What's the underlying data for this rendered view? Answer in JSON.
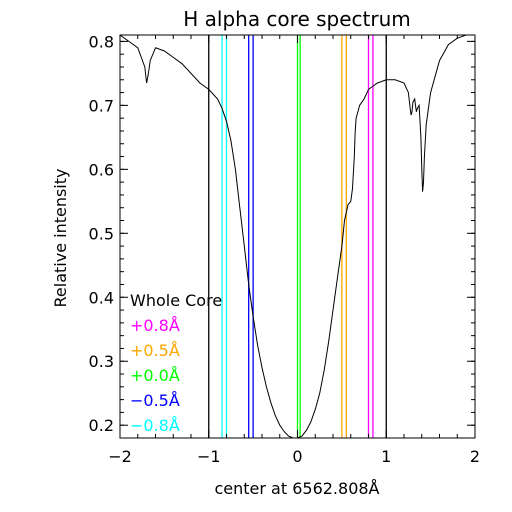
{
  "chart_data": {
    "type": "line",
    "title": "H alpha core spectrum",
    "xlabel": "center at 6562.808Å",
    "ylabel": "Relative intensity",
    "xlim": [
      -2,
      2
    ],
    "ylim": [
      0.18,
      0.81
    ],
    "x_ticks": [
      {
        "value": -2,
        "label": "−2"
      },
      {
        "value": -1,
        "label": "−1"
      },
      {
        "value": 0,
        "label": "0"
      },
      {
        "value": 1,
        "label": "1"
      },
      {
        "value": 2,
        "label": "2"
      }
    ],
    "y_ticks": [
      {
        "value": 0.2,
        "label": "0.2"
      },
      {
        "value": 0.3,
        "label": "0.3"
      },
      {
        "value": 0.4,
        "label": "0.4"
      },
      {
        "value": 0.5,
        "label": "0.5"
      },
      {
        "value": 0.6,
        "label": "0.6"
      },
      {
        "value": 0.7,
        "label": "0.7"
      },
      {
        "value": 0.8,
        "label": "0.8"
      }
    ],
    "series": [
      {
        "color": "#000000",
        "x": [
          -2.0,
          -1.9,
          -1.8,
          -1.72,
          -1.7,
          -1.68,
          -1.66,
          -1.6,
          -1.5,
          -1.4,
          -1.3,
          -1.2,
          -1.1,
          -1.0,
          -0.9,
          -0.85,
          -0.8,
          -0.75,
          -0.7,
          -0.65,
          -0.6,
          -0.55,
          -0.5,
          -0.45,
          -0.4,
          -0.35,
          -0.3,
          -0.25,
          -0.2,
          -0.15,
          -0.1,
          -0.05,
          0.0,
          0.05,
          0.1,
          0.15,
          0.2,
          0.25,
          0.3,
          0.35,
          0.4,
          0.45,
          0.5,
          0.53,
          0.57,
          0.6,
          0.62,
          0.64,
          0.65,
          0.66,
          0.68,
          0.7,
          0.75,
          0.8,
          0.9,
          1.0,
          1.1,
          1.2,
          1.25,
          1.27,
          1.28,
          1.29,
          1.3,
          1.32,
          1.33,
          1.34,
          1.35,
          1.37,
          1.39,
          1.4,
          1.41,
          1.42,
          1.43,
          1.45,
          1.5,
          1.6,
          1.7,
          1.8,
          1.9,
          2.0
        ],
        "y": [
          0.81,
          0.8,
          0.79,
          0.76,
          0.735,
          0.75,
          0.77,
          0.79,
          0.785,
          0.775,
          0.765,
          0.75,
          0.735,
          0.725,
          0.71,
          0.695,
          0.675,
          0.645,
          0.6,
          0.54,
          0.48,
          0.42,
          0.37,
          0.325,
          0.29,
          0.26,
          0.235,
          0.215,
          0.2,
          0.19,
          0.183,
          0.18,
          0.18,
          0.183,
          0.192,
          0.205,
          0.225,
          0.25,
          0.285,
          0.33,
          0.38,
          0.43,
          0.48,
          0.52,
          0.545,
          0.55,
          0.57,
          0.62,
          0.66,
          0.68,
          0.69,
          0.7,
          0.71,
          0.725,
          0.735,
          0.74,
          0.74,
          0.735,
          0.72,
          0.695,
          0.685,
          0.69,
          0.705,
          0.71,
          0.7,
          0.69,
          0.695,
          0.7,
          0.65,
          0.6,
          0.565,
          0.58,
          0.62,
          0.67,
          0.72,
          0.77,
          0.795,
          0.805,
          0.81,
          0.81
        ]
      }
    ],
    "vertical_lines": [
      {
        "x": -1.0,
        "color": "#000000"
      },
      {
        "x": 1.0,
        "color": "#000000"
      },
      {
        "x": -0.8,
        "color": "#00ffff"
      },
      {
        "x": -0.85,
        "color": "#00ffff"
      },
      {
        "x": -0.5,
        "color": "#0000ff"
      },
      {
        "x": -0.55,
        "color": "#0000ff"
      },
      {
        "x": 0.0,
        "color": "#00ff00"
      },
      {
        "x": 0.03,
        "color": "#00ff00"
      },
      {
        "x": 0.5,
        "color": "#ffa500"
      },
      {
        "x": 0.55,
        "color": "#ffa500"
      },
      {
        "x": 0.8,
        "color": "#ff00ff"
      },
      {
        "x": 0.85,
        "color": "#ff00ff"
      }
    ],
    "legend": {
      "position": "bottom-left",
      "entries": [
        {
          "label": "Whole Core",
          "color": "#000000"
        },
        {
          "label": "+0.8Å",
          "color": "#ff00ff"
        },
        {
          "label": "+0.5Å",
          "color": "#ffa500"
        },
        {
          "label": "+0.0Å",
          "color": "#00ff00"
        },
        {
          "label": "−0.5Å",
          "color": "#0000ff"
        },
        {
          "label": "−0.8Å",
          "color": "#00ffff"
        }
      ]
    },
    "grid": false
  }
}
